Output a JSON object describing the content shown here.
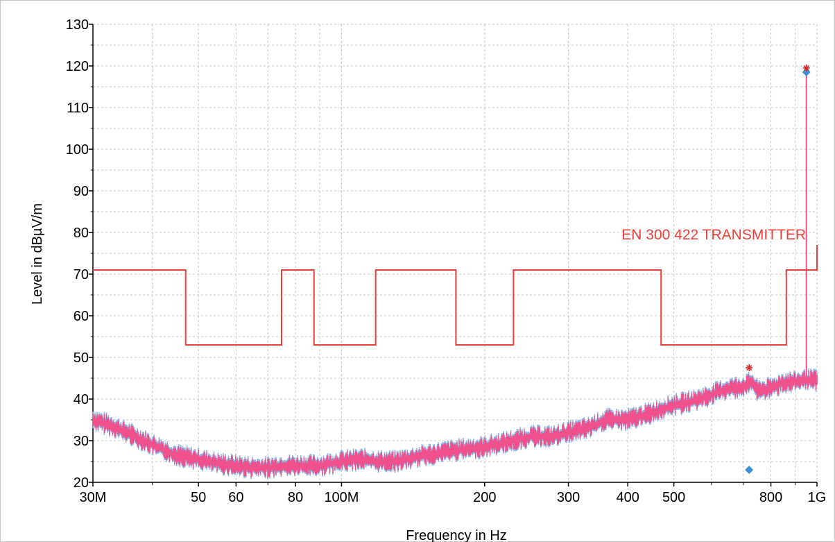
{
  "chart_data": {
    "type": "line",
    "xlabel": "Frequency in Hz",
    "ylabel": "Level in dBµV/m",
    "x_scale": "log",
    "xlim": [
      30000000,
      1000000000
    ],
    "ylim": [
      20,
      130
    ],
    "grid": true,
    "x_tick_labels": [
      {
        "value": 30000000,
        "label": "30M"
      },
      {
        "value": 50000000,
        "label": "50"
      },
      {
        "value": 60000000,
        "label": "60"
      },
      {
        "value": 80000000,
        "label": "80"
      },
      {
        "value": 100000000,
        "label": "100M"
      },
      {
        "value": 200000000,
        "label": "200"
      },
      {
        "value": 300000000,
        "label": "300"
      },
      {
        "value": 400000000,
        "label": "400"
      },
      {
        "value": 500000000,
        "label": "500"
      },
      {
        "value": 800000000,
        "label": "800"
      },
      {
        "value": 1000000000,
        "label": "1G"
      }
    ],
    "x_minor_ticks": [
      40000000,
      70000000,
      90000000,
      600000000,
      700000000,
      900000000
    ],
    "y_ticks": [
      20,
      30,
      40,
      50,
      60,
      70,
      80,
      90,
      100,
      110,
      120,
      130
    ],
    "colors": {
      "limit": "#e8413c",
      "trace_primary": "#f0508c",
      "trace_secondary": "#8cb4e6",
      "marker_diamond": "#3d8fd6",
      "marker_star": "#d42020",
      "grid": "#c8c8c8"
    },
    "limit_line": {
      "name": "EN 300 422 TRANSMITTER",
      "points": [
        [
          30000000,
          71
        ],
        [
          47000000,
          71
        ],
        [
          47000000,
          53
        ],
        [
          74800000,
          53
        ],
        [
          74800000,
          71
        ],
        [
          87500000,
          71
        ],
        [
          87500000,
          53
        ],
        [
          118000000,
          53
        ],
        [
          118000000,
          71
        ],
        [
          174000000,
          71
        ],
        [
          174000000,
          53
        ],
        [
          230000000,
          53
        ],
        [
          230000000,
          71
        ],
        [
          470000000,
          71
        ],
        [
          470000000,
          53
        ],
        [
          862000000,
          53
        ],
        [
          862000000,
          71
        ],
        [
          1000000000,
          71
        ],
        [
          1000000000,
          77
        ]
      ]
    },
    "trace": {
      "points": [
        [
          30000000,
          35
        ],
        [
          33000000,
          33.5
        ],
        [
          36000000,
          31.5
        ],
        [
          40000000,
          29
        ],
        [
          45000000,
          26.5
        ],
        [
          50000000,
          25.5
        ],
        [
          55000000,
          24.5
        ],
        [
          60000000,
          24
        ],
        [
          65000000,
          23.5
        ],
        [
          70000000,
          23.5
        ],
        [
          75000000,
          24
        ],
        [
          80000000,
          24
        ],
        [
          90000000,
          24
        ],
        [
          100000000,
          25
        ],
        [
          110000000,
          25.5
        ],
        [
          120000000,
          25
        ],
        [
          130000000,
          25
        ],
        [
          150000000,
          26.5
        ],
        [
          170000000,
          27.5
        ],
        [
          200000000,
          28.5
        ],
        [
          230000000,
          30
        ],
        [
          250000000,
          31
        ],
        [
          280000000,
          31
        ],
        [
          300000000,
          32
        ],
        [
          330000000,
          33
        ],
        [
          360000000,
          35
        ],
        [
          400000000,
          35
        ],
        [
          430000000,
          36
        ],
        [
          470000000,
          37.5
        ],
        [
          500000000,
          38.5
        ],
        [
          550000000,
          39.5
        ],
        [
          600000000,
          41
        ],
        [
          650000000,
          42.5
        ],
        [
          700000000,
          43
        ],
        [
          730000000,
          44
        ],
        [
          750000000,
          42
        ],
        [
          800000000,
          42.5
        ],
        [
          850000000,
          44
        ],
        [
          900000000,
          44
        ],
        [
          950000000,
          44.5
        ],
        [
          1000000000,
          44.5
        ]
      ],
      "spike": {
        "frequency": 950000000,
        "level": 119
      }
    },
    "markers": [
      {
        "shape": "diamond",
        "frequency": 950000000,
        "level": 118.5
      },
      {
        "shape": "diamond",
        "frequency": 720000000,
        "level": 23
      },
      {
        "shape": "star",
        "frequency": 950000000,
        "level": 119.5
      },
      {
        "shape": "star",
        "frequency": 720000000,
        "level": 47.5
      }
    ]
  }
}
